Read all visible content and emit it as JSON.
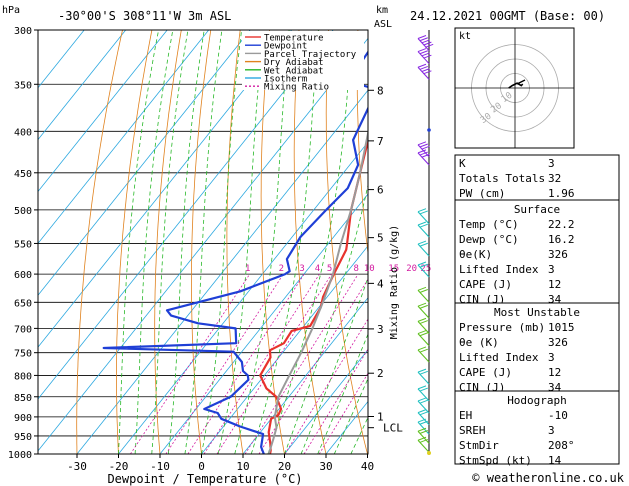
{
  "header": {
    "location": "-30°00'S 308°11'W 3m ASL",
    "datetime": "24.12.2021 00GMT (Base: 00)",
    "hpa_label": "hPa",
    "km_label": "km",
    "asl_label": "ASL",
    "footer": "© weatheronline.co.uk"
  },
  "chart_data": {
    "type": "line",
    "title": "",
    "xlabel": "Dewpoint / Temperature (°C)",
    "ylabel_right": "Mixing Ratio (g/kg)",
    "xlim": [
      -40,
      40
    ],
    "x_ticks": [
      -30,
      -20,
      -10,
      0,
      10,
      20,
      30,
      40
    ],
    "pressure_levels": [
      300,
      350,
      400,
      450,
      500,
      550,
      600,
      650,
      700,
      750,
      800,
      850,
      900,
      950,
      1000
    ],
    "km_ticks": [
      {
        "label": "8",
        "p": 356
      },
      {
        "label": "7",
        "p": 411
      },
      {
        "label": "6",
        "p": 472
      },
      {
        "label": "5",
        "p": 541
      },
      {
        "label": "4",
        "p": 616
      },
      {
        "label": "3",
        "p": 701
      },
      {
        "label": "2",
        "p": 795
      },
      {
        "label": "1",
        "p": 899
      }
    ],
    "lcl_label": "LCL",
    "lcl_p": 928,
    "mixing_ratio_labels": [
      "1",
      "2",
      "3",
      "4",
      "5",
      "8",
      "10",
      "15",
      "20",
      "25"
    ],
    "mixing_ratio_values": [
      1,
      2,
      3,
      4,
      5,
      8,
      10,
      15,
      20,
      25
    ],
    "legend": [
      {
        "name": "Temperature",
        "color": "#e8322d",
        "dash": ""
      },
      {
        "name": "Dewpoint",
        "color": "#1f3fd6",
        "dash": ""
      },
      {
        "name": "Parcel Trajectory",
        "color": "#9a9a9a",
        "dash": ""
      },
      {
        "name": "Dry Adiabat",
        "color": "#e0821e",
        "dash": ""
      },
      {
        "name": "Wet Adiabat",
        "color": "#28b828",
        "dash": ""
      },
      {
        "name": "Isotherm",
        "color": "#2ba8e0",
        "dash": ""
      },
      {
        "name": "Mixing Ratio",
        "color": "#d21ba0",
        "dash": "2,2"
      }
    ],
    "series": [
      {
        "name": "Temperature",
        "color": "#e8322d",
        "points": [
          [
            -32,
            300
          ],
          [
            -28.5,
            340
          ],
          [
            -27.5,
            350
          ],
          [
            -24,
            375
          ],
          [
            -21.5,
            400
          ],
          [
            -16,
            450
          ],
          [
            -11,
            500
          ],
          [
            -5.5,
            550
          ],
          [
            -4.5,
            560
          ],
          [
            -2.8,
            600
          ],
          [
            -1,
            640
          ],
          [
            0.5,
            660
          ],
          [
            1.5,
            695
          ],
          [
            -2,
            705
          ],
          [
            -1.5,
            730
          ],
          [
            -3.5,
            745
          ],
          [
            -2,
            760
          ],
          [
            -1,
            800
          ],
          [
            3,
            830
          ],
          [
            7,
            850
          ],
          [
            10.5,
            880
          ],
          [
            11,
            895
          ],
          [
            10,
            905
          ],
          [
            12,
            940
          ],
          [
            14.5,
            970
          ],
          [
            16,
            990
          ],
          [
            16.5,
            1000
          ]
        ]
      },
      {
        "name": "Dewpoint",
        "color": "#1f3fd6",
        "points": [
          [
            -38,
            300
          ],
          [
            -37,
            330
          ],
          [
            -39,
            345
          ],
          [
            -28,
            355
          ],
          [
            -24,
            410
          ],
          [
            -18,
            440
          ],
          [
            -16,
            470
          ],
          [
            -17,
            500
          ],
          [
            -18,
            540
          ],
          [
            -17,
            575
          ],
          [
            -14,
            595
          ],
          [
            -14.5,
            600
          ],
          [
            -22,
            630
          ],
          [
            -36,
            665
          ],
          [
            -34,
            675
          ],
          [
            -26,
            690
          ],
          [
            -16,
            700
          ],
          [
            -13,
            730
          ],
          [
            -44,
            740
          ],
          [
            -12,
            748
          ],
          [
            -8,
            770
          ],
          [
            -6,
            790
          ],
          [
            -4,
            800
          ],
          [
            -3,
            810
          ],
          [
            -4,
            850
          ],
          [
            -8,
            880
          ],
          [
            -4,
            890
          ],
          [
            -2,
            905
          ],
          [
            4,
            925
          ],
          [
            11,
            945
          ],
          [
            13,
            980
          ],
          [
            15,
            1000
          ]
        ]
      },
      {
        "name": "Parcel Trajectory",
        "color": "#9a9a9a",
        "points": [
          [
            16.2,
            1000
          ],
          [
            14.5,
            960
          ],
          [
            13,
            928
          ],
          [
            10.5,
            900
          ],
          [
            7.5,
            850
          ],
          [
            6,
            800
          ],
          [
            4.5,
            750
          ],
          [
            2.5,
            700
          ],
          [
            0,
            650
          ],
          [
            -3,
            600
          ],
          [
            -7,
            550
          ],
          [
            -11,
            500
          ],
          [
            -16,
            450
          ],
          [
            -22,
            400
          ],
          [
            -29,
            350
          ],
          [
            -37,
            300
          ]
        ]
      }
    ]
  },
  "hodograph": {
    "label": "kt",
    "ring_labels": [
      "10",
      "20",
      "30"
    ],
    "points": [
      [
        4,
        6
      ],
      [
        9,
        9
      ],
      [
        16,
        12
      ],
      [
        22,
        9
      ],
      [
        24,
        11
      ]
    ]
  },
  "indices_top": [
    {
      "label": "K",
      "value": "3"
    },
    {
      "label": "Totals Totals",
      "value": "32"
    },
    {
      "label": "PW (cm)",
      "value": "1.96"
    }
  ],
  "surface": {
    "title": "Surface",
    "rows": [
      {
        "label": "Temp (°C)",
        "value": "22.2"
      },
      {
        "label": "Dewp (°C)",
        "value": "16.2"
      },
      {
        "label": "θe(K)",
        "value": "326"
      },
      {
        "label": "Lifted Index",
        "value": "3"
      },
      {
        "label": "CAPE (J)",
        "value": "12"
      },
      {
        "label": "CIN (J)",
        "value": "34"
      }
    ]
  },
  "most_unstable": {
    "title": "Most Unstable",
    "rows": [
      {
        "label": "Pressure (mb)",
        "value": "1015"
      },
      {
        "label": "θe (K)",
        "value": "326"
      },
      {
        "label": "Lifted Index",
        "value": "3"
      },
      {
        "label": "CAPE (J)",
        "value": "12"
      },
      {
        "label": "CIN (J)",
        "value": "34"
      }
    ]
  },
  "hodograph_table": {
    "title": "Hodograph",
    "rows": [
      {
        "label": "EH",
        "value": "-10"
      },
      {
        "label": "SREH",
        "value": "3"
      },
      {
        "label": "StmDir",
        "value": "208°"
      },
      {
        "label": "StmSpd (kt)",
        "value": "14"
      }
    ]
  },
  "colors": {
    "temperature": "#e8322d",
    "dewpoint": "#1f3fd6",
    "parcel": "#9a9a9a",
    "dry_adiabat": "#e0821e",
    "wet_adiabat": "#28b828",
    "isotherm": "#2ba8e0",
    "mixing_ratio": "#d21ba0",
    "wind_barbs_upper": "#8a2be2",
    "wind_barbs_lower": "#20c0c0",
    "wind_barbs_surface": "#60c020"
  }
}
